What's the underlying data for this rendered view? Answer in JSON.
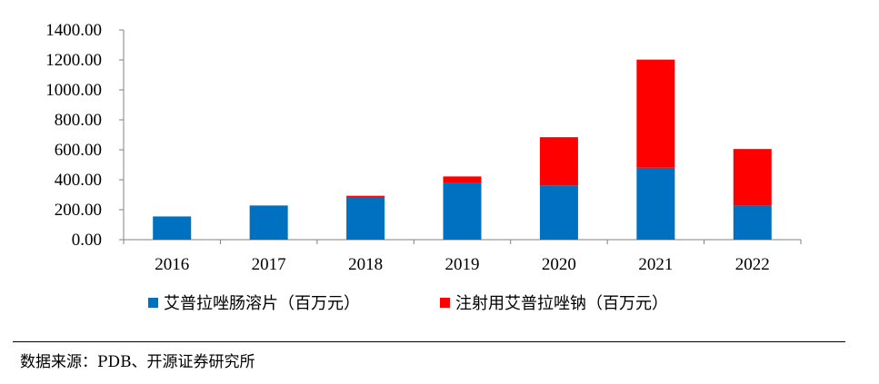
{
  "chart_data": {
    "type": "bar",
    "stacked": true,
    "categories": [
      "2016",
      "2017",
      "2018",
      "2019",
      "2020",
      "2021",
      "2022"
    ],
    "series": [
      {
        "name": "艾普拉唑肠溶片（百万元）",
        "color": "#0070C0",
        "values": [
          155,
          228,
          285,
          378,
          362,
          480,
          228
        ]
      },
      {
        "name": "注射用艾普拉唑钠（百万元）",
        "color": "#FF0000",
        "values": [
          0,
          0,
          8,
          44,
          322,
          722,
          377
        ]
      }
    ],
    "ylim": [
      0,
      1400
    ],
    "yticks": [
      "0.00",
      "200.00",
      "400.00",
      "600.00",
      "800.00",
      "1000.00",
      "1200.00",
      "1400.00"
    ],
    "grid": false,
    "legend_position": "bottom"
  },
  "source_note": "数据来源：PDB、开源证券研究所"
}
